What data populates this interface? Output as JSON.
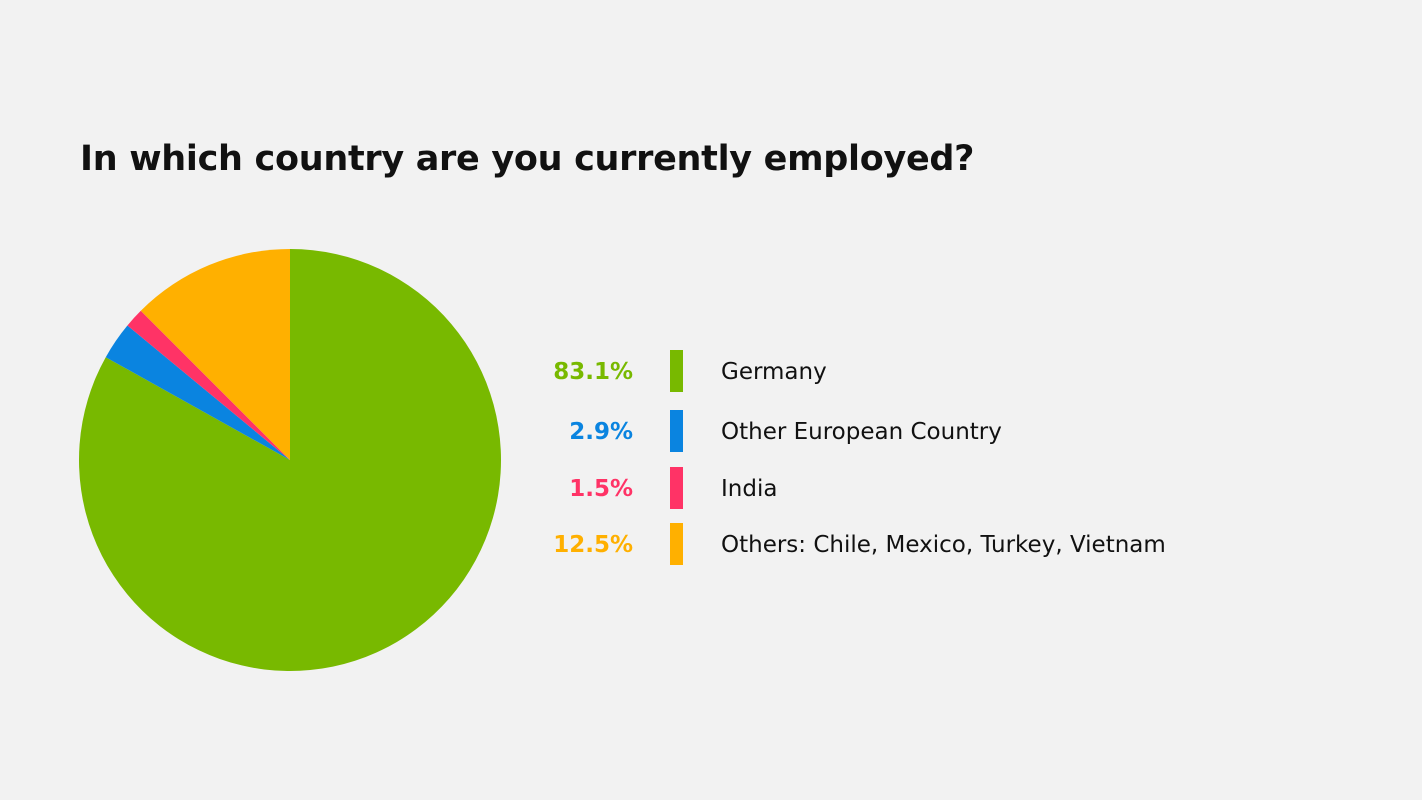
{
  "chart_data": {
    "type": "pie",
    "title": "In which country are you currently employed?",
    "slices": [
      {
        "label": "Germany",
        "value": 83.1,
        "value_label": "83.1%",
        "color": "#78b900"
      },
      {
        "label": "Other European Country",
        "value": 2.9,
        "value_label": "2.9%",
        "color": "#0a84e0"
      },
      {
        "label": "India",
        "value": 1.5,
        "value_label": "1.5%",
        "color": "#ff3366"
      },
      {
        "label": "Others: Chile, Mexico, Turkey, Vietnam",
        "value": 12.5,
        "value_label": "12.5%",
        "color": "#ffb000"
      }
    ],
    "start_angle_deg": 0,
    "direction": "clockwise",
    "legend_position": "right"
  },
  "colors": {
    "background": "#f2f2f2",
    "title": "#111111"
  }
}
